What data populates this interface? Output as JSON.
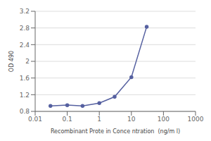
{
  "chart_data": {
    "type": "line",
    "x": [
      0.03,
      0.1,
      0.3,
      1,
      3,
      10,
      30
    ],
    "values": [
      0.93,
      0.95,
      0.93,
      1.0,
      1.15,
      1.62,
      2.83
    ],
    "color": "#5560a0",
    "marker": "circle",
    "xlabel": "Recombinant Prote in Conce ntration  (ng/m l)",
    "ylabel": "OD 490",
    "xlim": [
      0.01,
      1000
    ],
    "ylim": [
      0.8,
      3.2
    ],
    "xticks": [
      0.01,
      0.1,
      1,
      10,
      100,
      1000
    ],
    "yticks": [
      0.8,
      1.2,
      1.6,
      2,
      2.4,
      2.8,
      3.2
    ],
    "log": "x",
    "grid": "y"
  }
}
